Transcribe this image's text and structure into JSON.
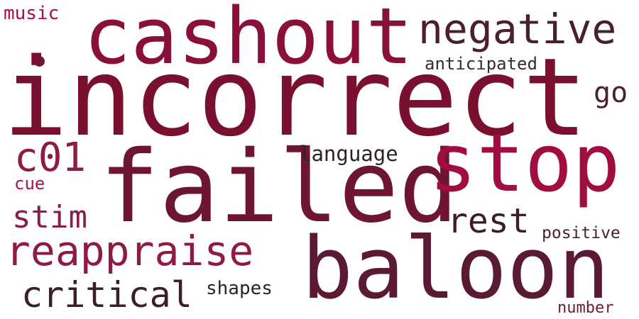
{
  "words": [
    {
      "id": "incorrect",
      "text": "incorrect",
      "color": "#7a1030"
    },
    {
      "id": "failed",
      "text": "failed",
      "color": "#6e1535"
    },
    {
      "id": "cashout",
      "text": "cashout",
      "color": "#8a0f3a"
    },
    {
      "id": "stop",
      "text": "stop",
      "color": "#a00d3e"
    },
    {
      "id": "baloon",
      "text": "baloon",
      "color": "#5b1a34"
    },
    {
      "id": "negative",
      "text": "negative",
      "color": "#4a1f30"
    },
    {
      "id": "reappraise",
      "text": "reappraise",
      "color": "#8d1b42"
    },
    {
      "id": "critical",
      "text": "critical",
      "color": "#3a1f28"
    },
    {
      "id": "c01",
      "text": "c01",
      "color": "#8e1a45"
    },
    {
      "id": "rest",
      "text": "rest",
      "color": "#3a1f28"
    },
    {
      "id": "stim",
      "text": "stim",
      "color": "#8a1c45"
    },
    {
      "id": "go",
      "text": "go",
      "color": "#4a1f30"
    },
    {
      "id": "language",
      "text": "language",
      "color": "#2e2327"
    },
    {
      "id": "shapes",
      "text": "shapes",
      "color": "#2e2327"
    },
    {
      "id": "music",
      "text": "music",
      "color": "#a80f4a"
    },
    {
      "id": "anticipated",
      "text": "anticipated",
      "color": "#3a2a30"
    },
    {
      "id": "positive",
      "text": "positive",
      "color": "#4a1f30"
    },
    {
      "id": "number",
      "text": "number",
      "color": "#6e1a35"
    },
    {
      "id": "cue",
      "text": "cue",
      "color": "#a81650"
    }
  ]
}
